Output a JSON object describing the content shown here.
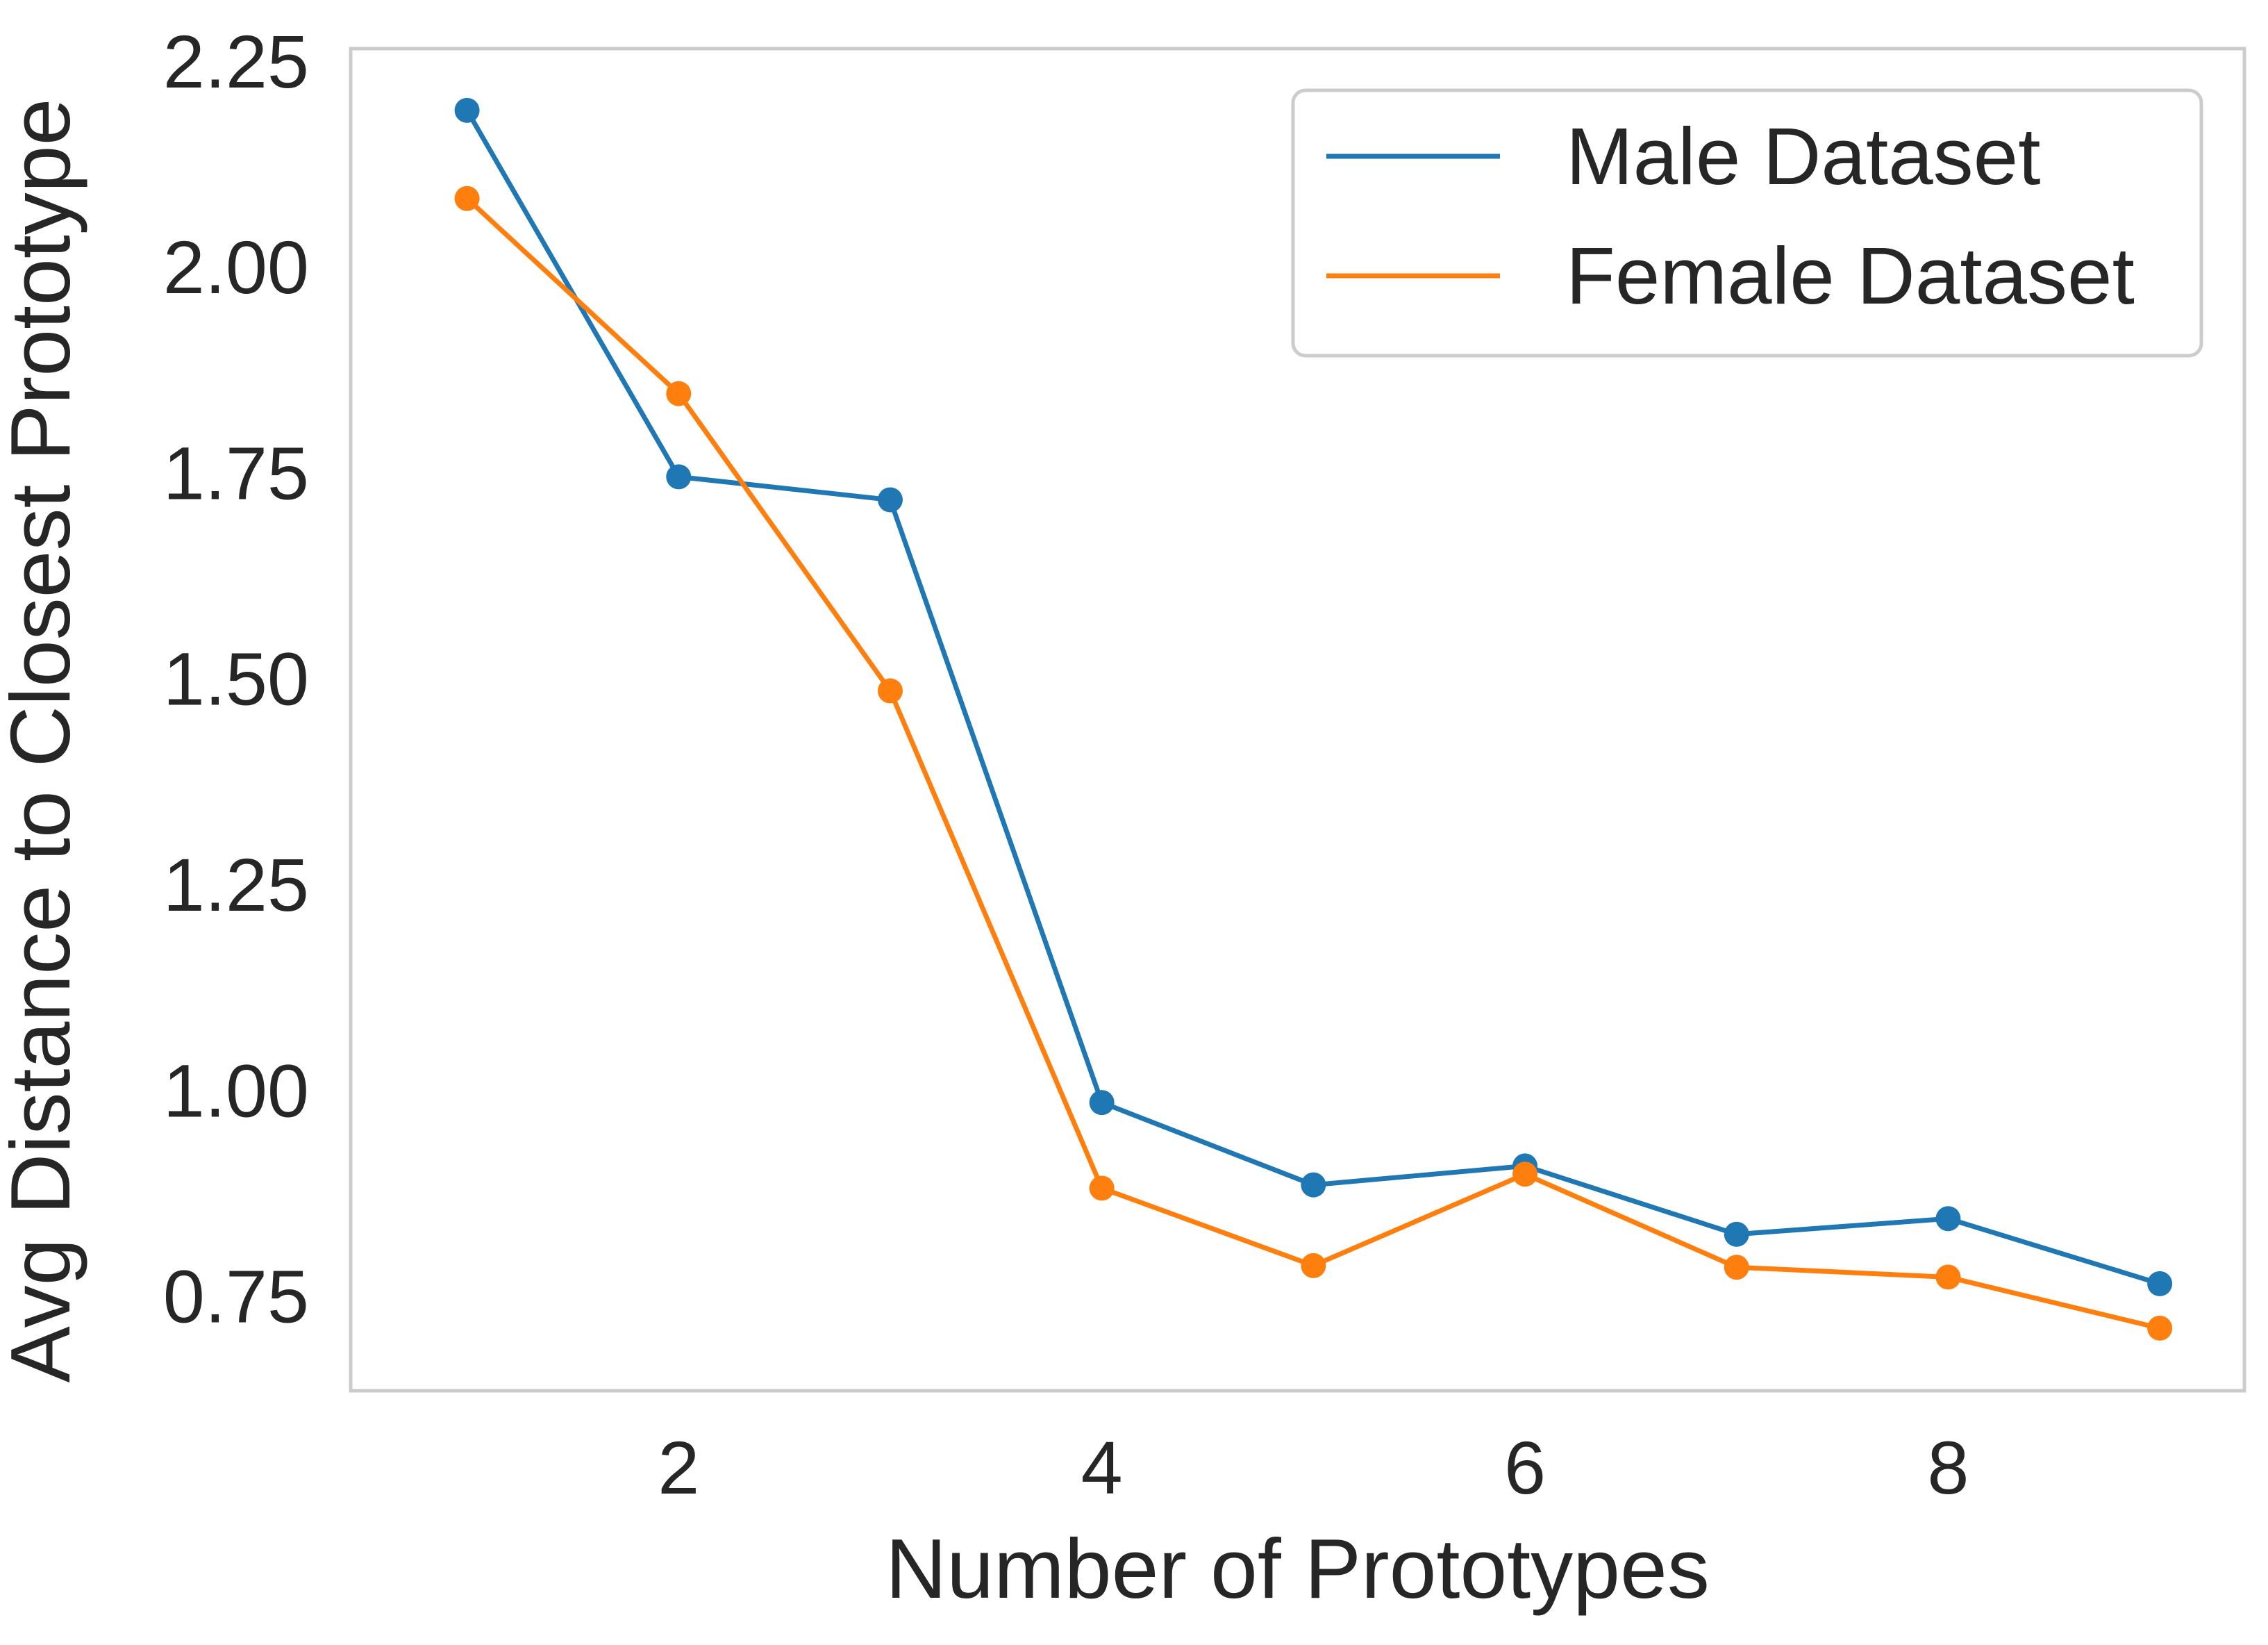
{
  "chart_data": {
    "type": "line",
    "title": "",
    "xlabel": "Number of Prototypes",
    "ylabel": "Avg Distance to Closest Prototype",
    "xlim": [
      0.45,
      9.4
    ],
    "ylim": [
      0.635,
      2.265
    ],
    "xticks": [
      2,
      4,
      6,
      8
    ],
    "yticks": [
      0.75,
      1.0,
      1.25,
      1.5,
      1.75,
      2.0,
      2.25
    ],
    "xtick_labels": [
      "2",
      "4",
      "6",
      "8"
    ],
    "ytick_labels": [
      "0.75",
      "1.00",
      "1.25",
      "1.50",
      "1.75",
      "2.00",
      "2.25"
    ],
    "grid": false,
    "legend_position": "top-right",
    "x": [
      1,
      2,
      3,
      4,
      5,
      6,
      7,
      8,
      9
    ],
    "series": [
      {
        "name": "Male Dataset",
        "color": "#1f77b4",
        "values": [
          2.19,
          1.745,
          1.717,
          0.985,
          0.885,
          0.908,
          0.825,
          0.844,
          0.765
        ]
      },
      {
        "name": "Female Dataset",
        "color": "#ff7f0e",
        "values": [
          2.083,
          1.846,
          1.485,
          0.881,
          0.787,
          0.898,
          0.785,
          0.773,
          0.711
        ]
      }
    ]
  }
}
